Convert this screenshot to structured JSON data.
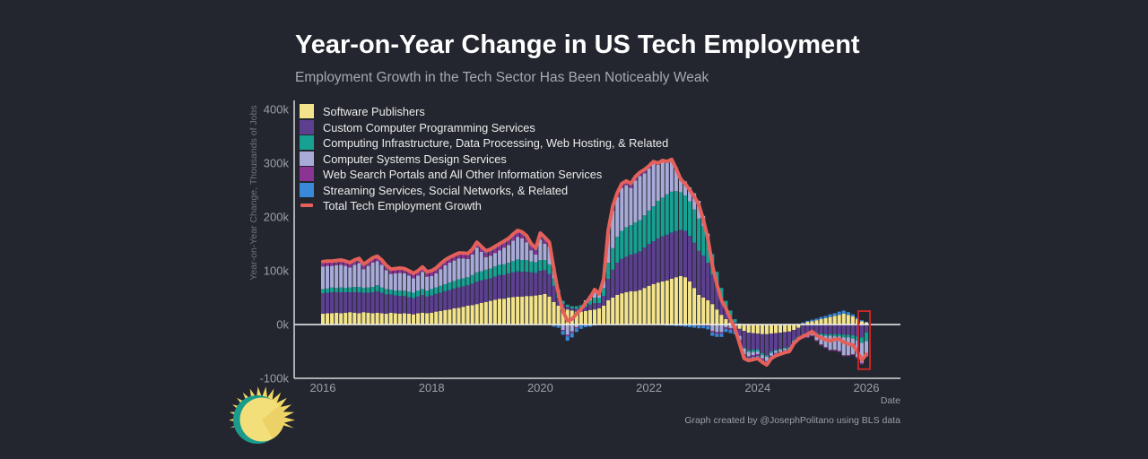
{
  "colors": {
    "background": "#23262e",
    "total_line": "#e5605a",
    "highlight_box": "#c4272b"
  },
  "chart_data": {
    "type": "bar",
    "stacked": true,
    "title": "Year-on-Year Change in US Tech Employment",
    "subtitle": "Employment Growth in the Tech Sector Has Been Noticeably Weak",
    "xlabel": "Date",
    "ylabel": "Year-on-Year Change, Thousands of Jobs",
    "ylim": [
      -100,
      400
    ],
    "units": "thousands of jobs",
    "legend_position": "top-left",
    "grid": false,
    "credit": "Graph created by @JosephPolitano using BLS data",
    "y_ticks": [
      {
        "value": 400,
        "label": "400k"
      },
      {
        "value": 300,
        "label": "300k"
      },
      {
        "value": 200,
        "label": "200k"
      },
      {
        "value": 100,
        "label": "100k"
      },
      {
        "value": 0,
        "label": "0k"
      },
      {
        "value": -100,
        "label": "-100k"
      }
    ],
    "x_ticks": [
      {
        "value": "2016-01",
        "label": "2016"
      },
      {
        "value": "2018-01",
        "label": "2018"
      },
      {
        "value": "2020-01",
        "label": "2020"
      },
      {
        "value": "2022-01",
        "label": "2022"
      },
      {
        "value": "2024-01",
        "label": "2024"
      },
      {
        "value": "2026-01",
        "label": "2026"
      }
    ],
    "dates": [
      "2016-01",
      "2016-02",
      "2016-03",
      "2016-04",
      "2016-05",
      "2016-06",
      "2016-07",
      "2016-08",
      "2016-09",
      "2016-10",
      "2016-11",
      "2016-12",
      "2017-01",
      "2017-02",
      "2017-03",
      "2017-04",
      "2017-05",
      "2017-06",
      "2017-07",
      "2017-08",
      "2017-09",
      "2017-10",
      "2017-11",
      "2017-12",
      "2018-01",
      "2018-02",
      "2018-03",
      "2018-04",
      "2018-05",
      "2018-06",
      "2018-07",
      "2018-08",
      "2018-09",
      "2018-10",
      "2018-11",
      "2018-12",
      "2019-01",
      "2019-02",
      "2019-03",
      "2019-04",
      "2019-05",
      "2019-06",
      "2019-07",
      "2019-08",
      "2019-09",
      "2019-10",
      "2019-11",
      "2019-12",
      "2020-01",
      "2020-02",
      "2020-03",
      "2020-04",
      "2020-05",
      "2020-06",
      "2020-07",
      "2020-08",
      "2020-09",
      "2020-10",
      "2020-11",
      "2020-12",
      "2021-01",
      "2021-02",
      "2021-03",
      "2021-04",
      "2021-05",
      "2021-06",
      "2021-07",
      "2021-08",
      "2021-09",
      "2021-10",
      "2021-11",
      "2021-12",
      "2022-01",
      "2022-02",
      "2022-03",
      "2022-04",
      "2022-05",
      "2022-06",
      "2022-07",
      "2022-08",
      "2022-09",
      "2022-10",
      "2022-11",
      "2022-12",
      "2023-01",
      "2023-02",
      "2023-03",
      "2023-04",
      "2023-05",
      "2023-06",
      "2023-07",
      "2023-08",
      "2023-09",
      "2023-10",
      "2023-11",
      "2023-12",
      "2024-01",
      "2024-02",
      "2024-03",
      "2024-04",
      "2024-05",
      "2024-06",
      "2024-07",
      "2024-08",
      "2024-09",
      "2024-10",
      "2024-11",
      "2024-12",
      "2025-01",
      "2025-02",
      "2025-03",
      "2025-04",
      "2025-05",
      "2025-06",
      "2025-07",
      "2025-08",
      "2025-09",
      "2025-10",
      "2025-11",
      "2025-12",
      "2026-01"
    ],
    "series": [
      {
        "key": "software-publishers",
        "name": "Software Publishers",
        "color": "#f3e38b",
        "values": [
          20,
          21,
          21,
          22,
          21,
          22,
          23,
          22,
          21,
          23,
          22,
          21,
          22,
          21,
          20,
          22,
          21,
          20,
          21,
          20,
          19,
          21,
          22,
          21,
          22,
          24,
          25,
          27,
          28,
          30,
          31,
          33,
          35,
          36,
          38,
          40,
          42,
          44,
          46,
          48,
          48,
          50,
          51,
          52,
          52,
          53,
          53,
          54,
          55,
          57,
          52,
          42,
          35,
          30,
          28,
          26,
          24,
          24,
          25,
          27,
          28,
          30,
          35,
          45,
          50,
          55,
          58,
          60,
          62,
          62,
          64,
          68,
          72,
          75,
          78,
          80,
          82,
          85,
          88,
          90,
          88,
          80,
          68,
          55,
          50,
          45,
          38,
          28,
          18,
          10,
          4,
          -2,
          -8,
          -12,
          -15,
          -16,
          -17,
          -18,
          -18,
          -17,
          -16,
          -15,
          -14,
          -13,
          -10,
          -6,
          2,
          5,
          6,
          8,
          10,
          12,
          14,
          16,
          18,
          20,
          18,
          15,
          10,
          6,
          4
        ]
      },
      {
        "key": "custom-computer-programming",
        "name": "Custom Computer Programming Services",
        "color": "#5d3f90",
        "values": [
          38,
          38,
          39,
          38,
          39,
          38,
          37,
          38,
          39,
          36,
          37,
          39,
          40,
          38,
          36,
          34,
          33,
          33,
          32,
          31,
          30,
          31,
          33,
          31,
          32,
          33,
          34,
          35,
          36,
          37,
          38,
          38,
          38,
          40,
          42,
          42,
          42,
          42,
          43,
          44,
          44,
          45,
          46,
          47,
          46,
          45,
          44,
          42,
          45,
          44,
          42,
          30,
          15,
          8,
          5,
          4,
          5,
          6,
          8,
          10,
          12,
          10,
          18,
          40,
          52,
          60,
          64,
          66,
          68,
          70,
          72,
          75,
          78,
          80,
          82,
          84,
          85,
          86,
          86,
          86,
          86,
          85,
          84,
          82,
          78,
          70,
          55,
          42,
          30,
          20,
          12,
          4,
          -13,
          -31,
          -33,
          -31,
          -29,
          -35,
          -39,
          -33,
          -31,
          -30,
          -29,
          -29,
          -19,
          -17,
          -20,
          -19,
          -16,
          -16,
          -17,
          -18,
          -18,
          -18,
          -18,
          -19,
          -19,
          -20,
          -22,
          -24,
          -15
        ]
      },
      {
        "key": "computing-infrastructure",
        "name": "Computing Infrastructure, Data Processing, Web Hosting, & Related",
        "color": "#17a192",
        "values": [
          8,
          8,
          9,
          8,
          9,
          8,
          9,
          10,
          10,
          9,
          10,
          10,
          11,
          10,
          10,
          9,
          9,
          10,
          10,
          10,
          10,
          11,
          11,
          11,
          12,
          12,
          13,
          13,
          14,
          14,
          15,
          15,
          15,
          16,
          17,
          17,
          18,
          18,
          19,
          19,
          20,
          20,
          21,
          22,
          22,
          22,
          20,
          20,
          20,
          19,
          18,
          14,
          8,
          6,
          4,
          4,
          5,
          6,
          7,
          8,
          10,
          10,
          15,
          30,
          40,
          48,
          52,
          55,
          55,
          58,
          58,
          60,
          62,
          65,
          70,
          72,
          75,
          76,
          74,
          70,
          66,
          64,
          62,
          60,
          55,
          48,
          38,
          28,
          20,
          14,
          10,
          6,
          2,
          -2,
          -3,
          -4,
          -4,
          -4,
          -3,
          -3,
          -2,
          -2,
          -2,
          -2,
          -2,
          -1,
          -1,
          -1,
          -2,
          -2,
          -3,
          -3,
          -3,
          -4,
          -4,
          -5,
          -5,
          -6,
          -8,
          -10,
          -16
        ]
      },
      {
        "key": "computer-systems-design",
        "name": "Computer Systems Design Services",
        "color": "#a8abd8",
        "values": [
          42,
          42,
          40,
          42,
          42,
          41,
          37,
          41,
          44,
          35,
          40,
          45,
          45,
          42,
          35,
          29,
          32,
          33,
          32,
          30,
          27,
          28,
          32,
          26,
          24,
          26,
          31,
          35,
          37,
          38,
          39,
          37,
          34,
          38,
          46,
          36,
          23,
          24,
          25,
          27,
          31,
          33,
          38,
          42,
          40,
          33,
          21,
          14,
          38,
          30,
          33,
          19,
          6,
          -10,
          -19,
          -13,
          -5,
          -1,
          5,
          8,
          15,
          6,
          14,
          54,
          70,
          74,
          80,
          78,
          69,
          78,
          82,
          78,
          78,
          79,
          67,
          67,
          61,
          60,
          44,
          27,
          26,
          26,
          30,
          33,
          19,
          6,
          -12,
          -14,
          -14,
          -5,
          -7,
          -7,
          -8,
          -10,
          -8,
          -6,
          -5,
          -6,
          -8,
          -5,
          -4,
          -4,
          -3,
          -3,
          -2,
          -2,
          -3,
          -3,
          -2,
          -11,
          -17,
          -21,
          -26,
          -25,
          -27,
          -33,
          -33,
          -29,
          -30,
          -37,
          -27
        ]
      },
      {
        "key": "web-search-portals",
        "name": "Web Search Portals and All Other Information Services",
        "color": "#8b3494",
        "values": [
          6,
          6,
          6,
          6,
          6,
          6,
          6,
          6,
          6,
          6,
          6,
          6,
          6,
          6,
          6,
          6,
          6,
          6,
          6,
          6,
          6,
          6,
          6,
          6,
          7,
          7,
          7,
          7,
          7,
          7,
          7,
          7,
          7,
          7,
          7,
          7,
          8,
          8,
          8,
          8,
          8,
          8,
          8,
          8,
          8,
          8,
          8,
          8,
          8,
          8,
          6,
          2,
          0,
          -2,
          -3,
          -3,
          -2,
          -1,
          0,
          1,
          2,
          2,
          3,
          4,
          5,
          5,
          5,
          5,
          5,
          5,
          5,
          5,
          4,
          4,
          3,
          3,
          2,
          2,
          1,
          0,
          0,
          -1,
          -1,
          -2,
          -2,
          -3,
          -3,
          -3,
          -3,
          -3,
          -3,
          -3,
          -3,
          -3,
          -3,
          -3,
          -3,
          -3,
          -3,
          -2,
          -2,
          -2,
          -2,
          -2,
          -2,
          -2,
          -2,
          -2,
          -2,
          -2,
          -2,
          -2,
          -2,
          -2,
          -2,
          -2,
          -2,
          -2,
          -3,
          -3,
          -2
        ]
      },
      {
        "key": "streaming-social-networks",
        "name": "Streaming Services, Social Networks, & Related",
        "color": "#3a88d8",
        "values": [
          3,
          3,
          3,
          3,
          3,
          3,
          3,
          3,
          3,
          3,
          3,
          3,
          3,
          3,
          3,
          3,
          3,
          3,
          3,
          3,
          3,
          3,
          3,
          3,
          3,
          3,
          3,
          3,
          3,
          3,
          3,
          3,
          3,
          3,
          3,
          3,
          4,
          4,
          4,
          4,
          4,
          4,
          4,
          4,
          4,
          4,
          4,
          4,
          4,
          4,
          2,
          -4,
          -6,
          -7,
          -8,
          -8,
          -7,
          -6,
          -5,
          -4,
          -2,
          -1,
          0,
          2,
          3,
          3,
          3,
          3,
          3,
          2,
          2,
          2,
          1,
          0,
          0,
          -1,
          -2,
          -2,
          -3,
          -3,
          -4,
          -4,
          -5,
          -5,
          -5,
          -6,
          -6,
          -6,
          -6,
          -6,
          -6,
          -6,
          -5,
          -5,
          -5,
          -5,
          -5,
          -4,
          -4,
          -3,
          -3,
          -2,
          -2,
          -1,
          0,
          1,
          2,
          2,
          3,
          3,
          4,
          4,
          5,
          5,
          6,
          6,
          5,
          4,
          3,
          2,
          1
        ]
      }
    ],
    "line_series": {
      "key": "total-tech-employment-growth",
      "name": "Total Tech Employment Growth",
      "color": "#e5605a",
      "values": [
        117,
        118,
        118,
        119,
        120,
        118,
        115,
        120,
        123,
        112,
        118,
        124,
        127,
        120,
        110,
        103,
        104,
        105,
        104,
        100,
        95,
        100,
        107,
        98,
        100,
        105,
        113,
        120,
        125,
        129,
        133,
        133,
        132,
        140,
        153,
        145,
        137,
        140,
        145,
        150,
        155,
        160,
        168,
        175,
        172,
        165,
        150,
        142,
        170,
        162,
        153,
        103,
        58,
        25,
        7,
        10,
        20,
        28,
        40,
        50,
        65,
        57,
        85,
        175,
        220,
        245,
        262,
        267,
        262,
        275,
        283,
        288,
        295,
        303,
        300,
        305,
        303,
        307,
        290,
        270,
        262,
        250,
        238,
        223,
        195,
        160,
        110,
        75,
        45,
        30,
        10,
        -8,
        -35,
        -63,
        -67,
        -65,
        -63,
        -70,
        -75,
        -63,
        -58,
        -55,
        -52,
        -50,
        -35,
        -27,
        -22,
        -18,
        -13,
        -20,
        -25,
        -28,
        -30,
        -28,
        -27,
        -33,
        -36,
        -38,
        -50,
        -66,
        -55
      ]
    },
    "annotations": [
      {
        "type": "highlight-box",
        "x_range": [
          "2025-12",
          "2026-01"
        ],
        "y_range": [
          25,
          -83
        ],
        "color": "#c4272b"
      }
    ]
  }
}
